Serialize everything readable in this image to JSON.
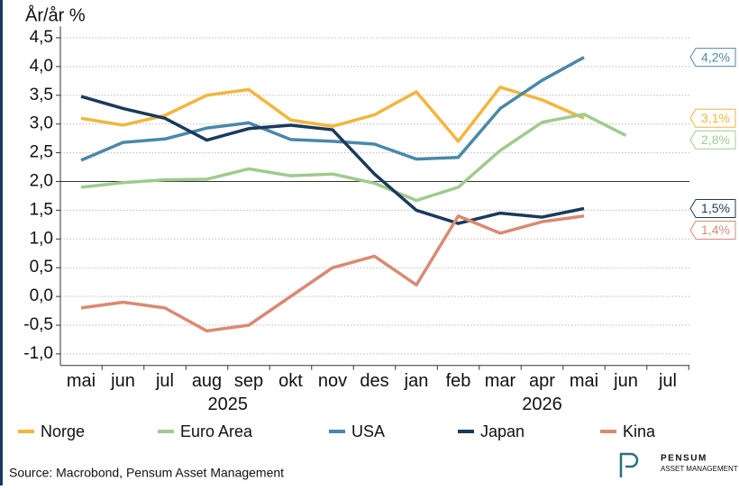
{
  "chart_data": {
    "type": "line",
    "y_axis_label": "År/år %",
    "categories": [
      "mai",
      "jun",
      "jul",
      "aug",
      "sep",
      "okt",
      "nov",
      "des",
      "jan",
      "feb",
      "mar",
      "apr",
      "mai",
      "jun",
      "jul"
    ],
    "x_groups": [
      {
        "label": "2025",
        "start": 0,
        "end": 7
      },
      {
        "label": "2026",
        "start": 8,
        "end": 14
      }
    ],
    "ylim": [
      -1.2,
      4.7
    ],
    "yticks": [
      {
        "value": 4.5,
        "label": "4,5"
      },
      {
        "value": 4,
        "label": "4,0"
      },
      {
        "value": 3.5,
        "label": "3,5"
      },
      {
        "value": 3,
        "label": "3,0"
      },
      {
        "value": 2.5,
        "label": "2,5"
      },
      {
        "value": 2,
        "label": "2,0"
      },
      {
        "value": 1.5,
        "label": "1,5"
      },
      {
        "value": 1,
        "label": "1,0"
      },
      {
        "value": 0.5,
        "label": "0,5"
      },
      {
        "value": 0,
        "label": "0,0"
      },
      {
        "value": -0.5,
        "label": "-0,5"
      },
      {
        "value": -1,
        "label": "-1,0"
      }
    ],
    "grid": true,
    "hline": 2,
    "series": [
      {
        "name": "Norge",
        "color": "#f2b63c",
        "values": [
          3.1,
          2.98,
          3.15,
          3.5,
          3.6,
          3.07,
          2.96,
          3.16,
          3.56,
          2.7,
          3.64,
          3.42,
          3.1,
          null,
          null
        ],
        "value_labels": [
          null,
          null,
          null,
          null,
          null,
          null,
          null,
          null,
          null,
          null,
          null,
          null,
          "3,1%",
          null,
          null
        ]
      },
      {
        "name": "Euro Area",
        "color": "#9fcb8e",
        "values": [
          1.9,
          1.98,
          2.03,
          2.04,
          2.22,
          2.1,
          2.13,
          1.97,
          1.67,
          1.9,
          2.54,
          3.03,
          3.17,
          2.8,
          null
        ],
        "value_labels": [
          null,
          null,
          null,
          null,
          null,
          null,
          null,
          null,
          null,
          null,
          null,
          null,
          null,
          "2,8%",
          null
        ]
      },
      {
        "name": "USA",
        "color": "#4a88a8",
        "values": [
          2.37,
          2.68,
          2.74,
          2.93,
          3.02,
          2.73,
          2.7,
          2.65,
          2.39,
          2.42,
          3.27,
          3.76,
          4.16,
          null,
          null
        ],
        "value_labels": [
          null,
          null,
          null,
          null,
          null,
          null,
          null,
          null,
          null,
          null,
          null,
          null,
          "4,2%",
          null,
          null
        ]
      },
      {
        "name": "Japan",
        "color": "#1a3a5c",
        "values": [
          3.48,
          3.27,
          3.1,
          2.72,
          2.92,
          2.98,
          2.9,
          2.13,
          1.5,
          1.27,
          1.45,
          1.38,
          1.53,
          null,
          null
        ],
        "value_labels": [
          null,
          null,
          null,
          null,
          null,
          null,
          null,
          null,
          null,
          null,
          null,
          null,
          "1,5%",
          null,
          null
        ]
      },
      {
        "name": "Kina",
        "color": "#d98a72",
        "values": [
          -0.2,
          -0.1,
          -0.2,
          -0.6,
          -0.5,
          0,
          0.5,
          0.7,
          0.2,
          1.4,
          1.1,
          1.3,
          1.4,
          null,
          null
        ],
        "value_labels": [
          null,
          null,
          null,
          null,
          null,
          null,
          null,
          null,
          null,
          null,
          null,
          null,
          "1,4%",
          null,
          null
        ]
      }
    ],
    "source": "Source: Macrobond, Pensum Asset Management",
    "logo": {
      "name": "PENSUM",
      "tagline": "ASSET MANAGEMENT"
    }
  }
}
